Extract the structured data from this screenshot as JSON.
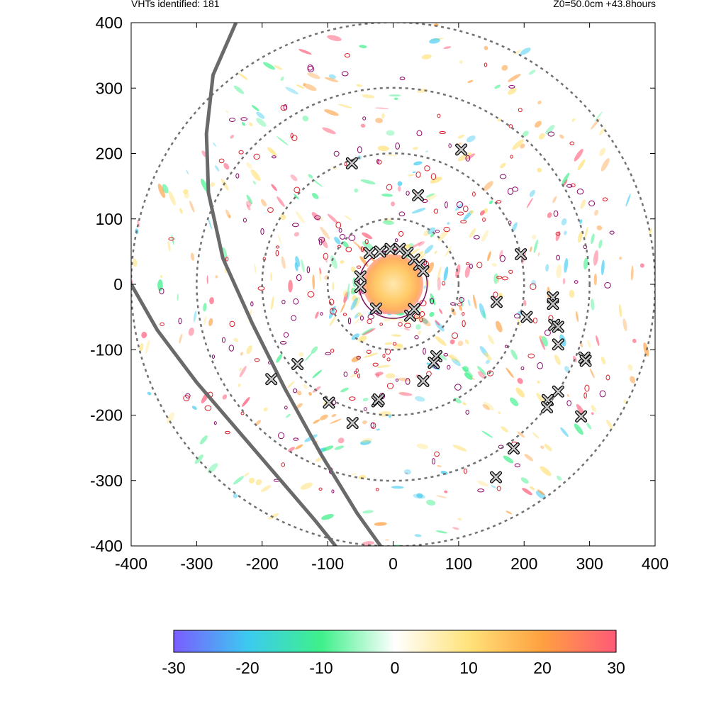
{
  "header": {
    "left_label": "VHTs identified: 181",
    "right_label": "Z0=50.0cm  +43.8hours"
  },
  "chart_data": {
    "type": "heatmap",
    "title": "",
    "xlabel": "",
    "ylabel": "",
    "xlim": [
      -400,
      400
    ],
    "ylim": [
      -400,
      400
    ],
    "x_ticks": [
      -400,
      -300,
      -200,
      -100,
      0,
      100,
      200,
      300,
      400
    ],
    "y_ticks": [
      -400,
      -300,
      -200,
      -100,
      0,
      100,
      200,
      300,
      400
    ],
    "grid": false,
    "range_rings_radius": [
      100,
      200,
      300,
      400
    ],
    "colorbar": {
      "min": -30,
      "max": 30,
      "ticks": [
        -30,
        -20,
        -10,
        0,
        10,
        20,
        30
      ],
      "colors": [
        "#7a5cff",
        "#3ccaf0",
        "#3ef08a",
        "#ffffff",
        "#ffe27a",
        "#ffa040",
        "#ff5a78"
      ]
    },
    "core_region": {
      "center": [
        0,
        0
      ],
      "radius": 40,
      "value": 12
    },
    "vht_markers": [
      [
        -63,
        185
      ],
      [
        104,
        206
      ],
      [
        38,
        136
      ],
      [
        -36,
        48
      ],
      [
        -20,
        50
      ],
      [
        -4,
        54
      ],
      [
        10,
        54
      ],
      [
        22,
        48
      ],
      [
        32,
        38
      ],
      [
        40,
        30
      ],
      [
        46,
        20
      ],
      [
        -50,
        12
      ],
      [
        -50,
        -4
      ],
      [
        -26,
        -37
      ],
      [
        26,
        -48
      ],
      [
        32,
        -38
      ],
      [
        195,
        46
      ],
      [
        158,
        -27
      ],
      [
        204,
        -50
      ],
      [
        244,
        -20
      ],
      [
        244,
        -30
      ],
      [
        246,
        -62
      ],
      [
        252,
        -65
      ],
      [
        252,
        -92
      ],
      [
        292,
        -112
      ],
      [
        294,
        -117
      ],
      [
        66,
        -110
      ],
      [
        62,
        -120
      ],
      [
        46,
        -148
      ],
      [
        -146,
        -122
      ],
      [
        -186,
        -145
      ],
      [
        -98,
        -181
      ],
      [
        -24,
        -179
      ],
      [
        -22,
        -176
      ],
      [
        -62,
        -212
      ],
      [
        252,
        -164
      ],
      [
        236,
        -177
      ],
      [
        235,
        -188
      ],
      [
        287,
        -202
      ],
      [
        184,
        -251
      ],
      [
        157,
        -295
      ]
    ],
    "tracks": [
      {
        "name": "",
        "x": [
          -240,
          -275,
          -285,
          -282,
          -260,
          -215,
          -165,
          -110,
          -55,
          -5,
          35
        ],
        "y": [
          400,
          320,
          230,
          140,
          40,
          -60,
          -160,
          -260,
          -350,
          -420,
          -480
        ]
      },
      {
        "name": "",
        "x": [
          -400,
          -360,
          -300,
          -240,
          -180,
          -120,
          -80
        ],
        "y": [
          0,
          -70,
          -150,
          -220,
          -290,
          -360,
          -410
        ]
      }
    ]
  }
}
